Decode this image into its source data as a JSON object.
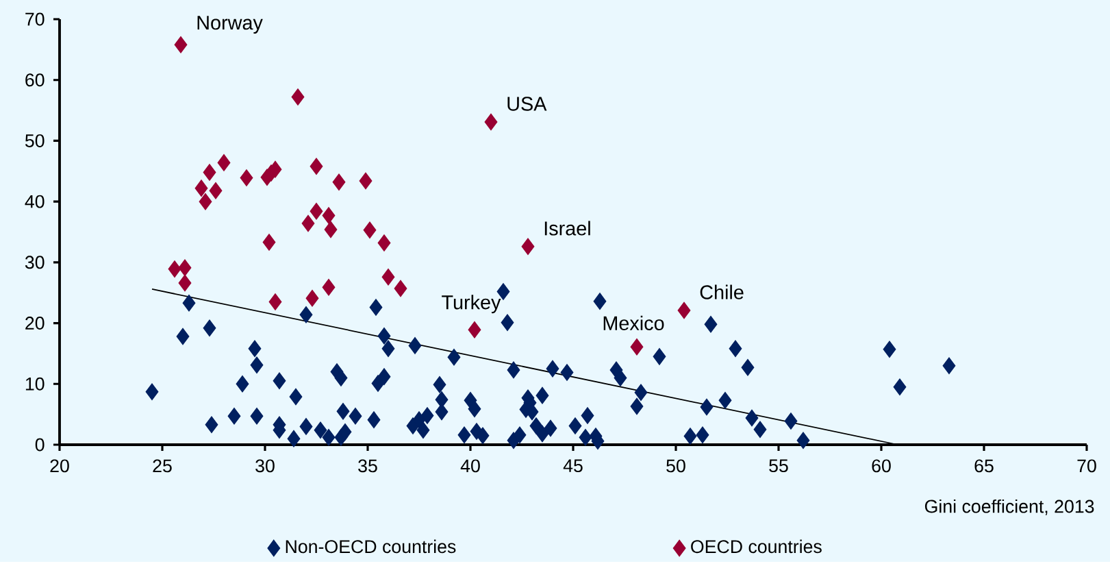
{
  "chart_data": {
    "type": "scatter",
    "xlabel": "Gini coefficient, 2013",
    "xlim": [
      20,
      70
    ],
    "xticks": [
      20,
      25,
      30,
      35,
      40,
      45,
      50,
      55,
      60,
      65,
      70
    ],
    "ylim": [
      0,
      70
    ],
    "yticks": [
      0,
      10,
      20,
      30,
      40,
      50,
      60,
      70
    ],
    "marker": "diamond",
    "legend": "bottom",
    "series": [
      {
        "name": "Non-OECD countries",
        "color": "#002060",
        "x": [
          24.5,
          26.3,
          26.0,
          27.3,
          32.0,
          35.4,
          35.8,
          36.0,
          37.3,
          39.2,
          29.5,
          29.6,
          28.9,
          30.7,
          31.5,
          33.5,
          33.7,
          35.8,
          35.5,
          38.5,
          38.6,
          38.6,
          27.4,
          28.5,
          29.6,
          30.7,
          30.7,
          31.4,
          32.0,
          32.7,
          33.1,
          33.7,
          33.9,
          33.8,
          34.4,
          35.3,
          37.2,
          37.5,
          37.9,
          37.7,
          39.7,
          41.6,
          41.8,
          46.3,
          51.7,
          42.1,
          44.0,
          44.7,
          47.1,
          47.3,
          49.2,
          52.9,
          53.5,
          48.3,
          48.1,
          51.5,
          52.4,
          53.7,
          50.7,
          51.3,
          40.0,
          40.2,
          40.3,
          40.6,
          42.1,
          42.4,
          42.8,
          42.9,
          42.7,
          43.5,
          43.0,
          43.2,
          43.5,
          43.9,
          45.1,
          45.7,
          45.6,
          46.1,
          46.2,
          54.1,
          55.6,
          56.2,
          60.4,
          60.9,
          63.3
        ],
        "values": [
          8.7,
          23.3,
          17.8,
          19.2,
          21.4,
          22.6,
          17.9,
          15.8,
          16.3,
          14.4,
          15.8,
          13.1,
          10.0,
          10.5,
          7.9,
          12.0,
          11.0,
          11.2,
          10.1,
          9.9,
          7.4,
          5.4,
          3.3,
          4.7,
          4.7,
          3.3,
          2.4,
          1.0,
          3.0,
          2.4,
          1.2,
          1.2,
          2.1,
          5.5,
          4.7,
          4.1,
          3.1,
          4.1,
          4.8,
          2.4,
          1.6,
          25.2,
          20.1,
          23.6,
          19.8,
          12.3,
          12.5,
          11.9,
          12.3,
          11.0,
          14.5,
          15.8,
          12.7,
          8.6,
          6.3,
          6.2,
          7.3,
          4.4,
          1.4,
          1.6,
          7.3,
          5.9,
          2.2,
          1.5,
          0.7,
          1.6,
          7.7,
          6.9,
          5.8,
          8.1,
          5.4,
          3.1,
          1.8,
          2.7,
          3.1,
          4.8,
          1.2,
          1.4,
          0.6,
          2.5,
          3.9,
          0.7,
          15.7,
          9.5,
          13.0
        ]
      },
      {
        "name": "OECD countries",
        "color": "#990033",
        "x": [
          25.9,
          31.6,
          28.0,
          27.3,
          29.1,
          30.1,
          30.3,
          30.5,
          32.5,
          26.9,
          27.6,
          27.1,
          33.6,
          34.9,
          32.5,
          33.1,
          32.1,
          33.2,
          35.1,
          30.2,
          35.8,
          25.6,
          26.1,
          26.1,
          30.5,
          32.3,
          33.1,
          36.0,
          36.6,
          41.0,
          42.8,
          40.2,
          48.1,
          50.4
        ],
        "values": [
          65.8,
          57.2,
          46.4,
          44.8,
          43.9,
          44.0,
          44.7,
          45.3,
          45.8,
          42.2,
          41.8,
          40.0,
          43.2,
          43.4,
          38.4,
          37.7,
          36.4,
          35.4,
          35.3,
          33.3,
          33.2,
          28.9,
          29.1,
          26.6,
          23.5,
          24.1,
          25.9,
          27.6,
          25.7,
          53.1,
          32.6,
          18.9,
          16.1,
          22.1
        ]
      },
      {
        "type": "line",
        "marker": "none",
        "color": "#000000",
        "x": [
          24.5,
          60.8
        ],
        "values": [
          25.6,
          0.0
        ]
      }
    ],
    "annotations": [
      {
        "text": "Norway",
        "x": 25.9,
        "y": 65.8
      },
      {
        "text": "USA",
        "x": 41.0,
        "y": 53.1
      },
      {
        "text": "Israel",
        "x": 42.8,
        "y": 32.6
      },
      {
        "text": "Turkey",
        "x": 40.2,
        "y": 18.9
      },
      {
        "text": "Mexico",
        "x": 48.1,
        "y": 16.1
      },
      {
        "text": "Chile",
        "x": 50.4,
        "y": 22.1
      }
    ]
  }
}
